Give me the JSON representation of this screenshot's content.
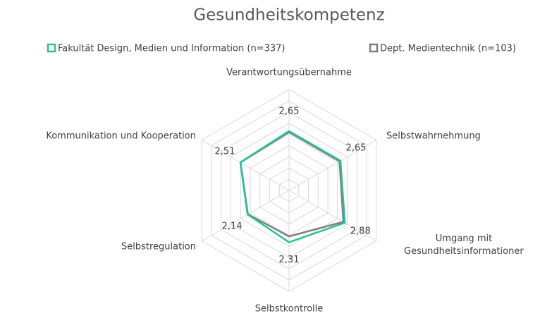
{
  "chart_data": {
    "type": "radar",
    "title": "Gesundheitskompetenz",
    "categories": [
      "Verantwortungsübernahme",
      "Selbstwahrnehmung",
      "Umgang mit Gesundheitsinformationen",
      "Selbstkontrolle",
      "Selbstregulation",
      "Kommunikation und Kooperation"
    ],
    "series": [
      {
        "name": "Fakultät Design, Medien und Information (n=337)",
        "color": "#2dbf9c",
        "values": [
          2.65,
          2.65,
          2.88,
          2.31,
          2.14,
          2.51
        ],
        "value_labels": [
          "2,65",
          "2,65",
          "2,88",
          "2,31",
          "2,14",
          "2,51"
        ]
      },
      {
        "name": "Dept. Medientechnik (n=103)",
        "color": "#7f7f7f",
        "values": [
          2.6,
          2.6,
          2.8,
          2.05,
          2.12,
          2.5
        ]
      }
    ],
    "ylim": [
      0,
      4.5
    ],
    "yticks": [
      0,
      0.5,
      1,
      1.5,
      2,
      2.5,
      3,
      3.5,
      4,
      4.5
    ],
    "grid": true,
    "legend": "top"
  }
}
